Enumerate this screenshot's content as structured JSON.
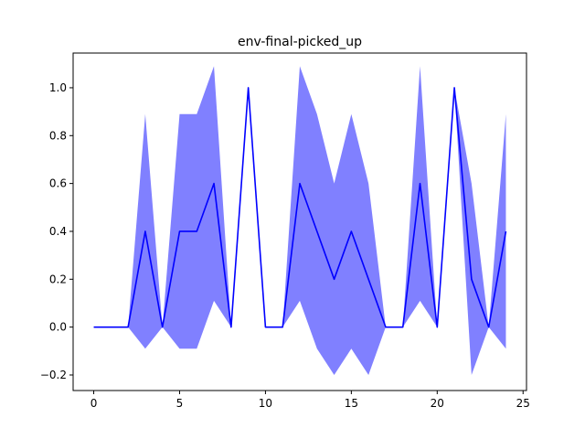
{
  "chart_data": {
    "type": "line",
    "title": "env-final-picked_up",
    "xlabel": "",
    "ylabel": "",
    "xlim": [
      -1.2,
      25.2
    ],
    "ylim": [
      -0.265,
      1.145
    ],
    "xticks": [
      0,
      5,
      10,
      15,
      20,
      25
    ],
    "yticks": [
      -0.2,
      0.0,
      0.2,
      0.4,
      0.6,
      0.8,
      1.0
    ],
    "ytick_labels": [
      "−0.2",
      "0.0",
      "0.2",
      "0.4",
      "0.6",
      "0.8",
      "1.0"
    ],
    "grid": false,
    "line_color": "#0000ff",
    "band_color": "#8080ff",
    "series": [
      {
        "x": [
          0,
          1,
          2,
          3,
          4,
          5,
          6,
          7,
          8,
          9,
          10,
          11,
          12,
          13,
          14,
          15,
          16,
          17,
          18,
          19,
          20,
          21,
          22,
          23,
          24
        ],
        "mean": [
          0,
          0,
          0,
          0.4,
          0,
          0.4,
          0.4,
          0.6,
          0,
          1.0,
          0,
          0,
          0.6,
          0.4,
          0.2,
          0.4,
          0.2,
          0,
          0,
          0.6,
          0,
          1.0,
          0.2,
          0,
          0.4
        ],
        "upper": [
          0,
          0,
          0,
          0.89,
          0,
          0.89,
          0.89,
          1.09,
          0,
          1.0,
          0,
          0,
          1.09,
          0.89,
          0.6,
          0.89,
          0.6,
          0,
          0,
          1.09,
          0,
          1.0,
          0.6,
          0,
          0.89
        ],
        "lower": [
          0,
          0,
          0,
          -0.09,
          0,
          -0.09,
          -0.09,
          0.11,
          0,
          1.0,
          0,
          0,
          0.11,
          -0.09,
          -0.2,
          -0.09,
          -0.2,
          0,
          0,
          0.11,
          0,
          1.0,
          -0.2,
          0,
          -0.09
        ]
      }
    ]
  }
}
